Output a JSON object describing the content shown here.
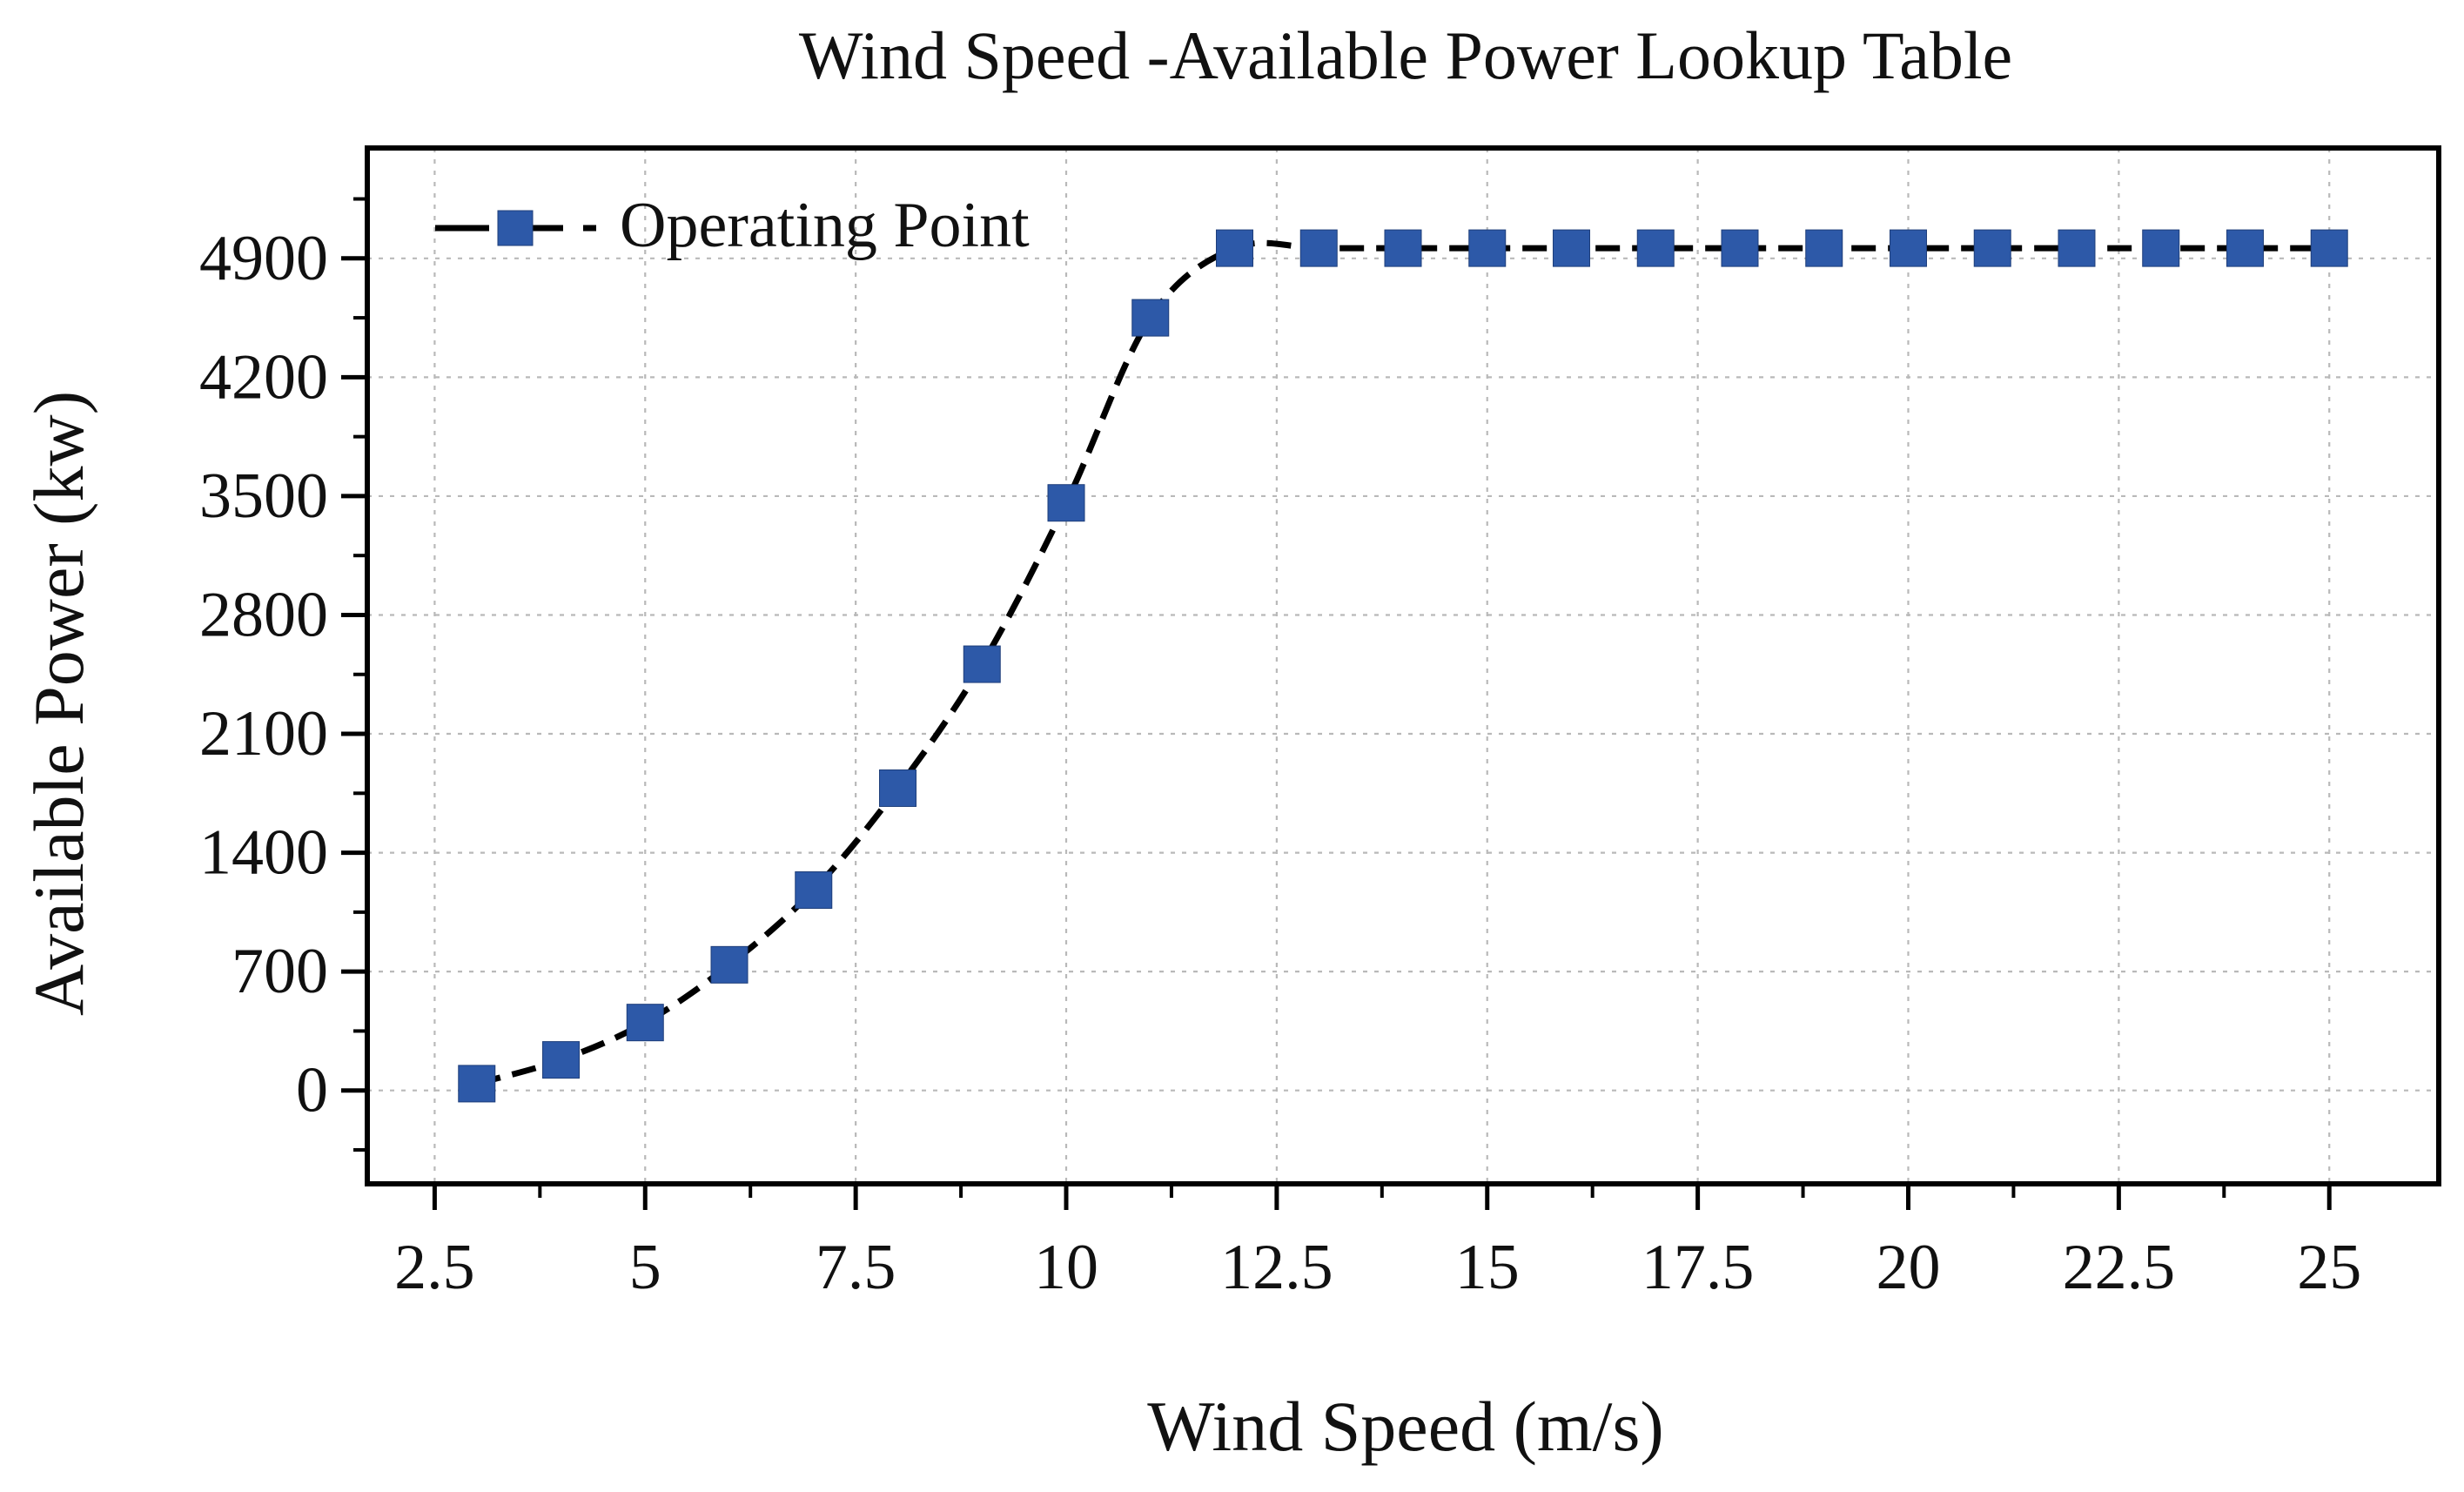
{
  "chart_data": {
    "type": "line",
    "title": "Wind Speed -Available Power Lookup Table",
    "xlabel": "Wind Speed (m/s)",
    "ylabel": "Available Power (kw)",
    "xlim": [
      1.7,
      26.3
    ],
    "ylim": [
      -550,
      5550
    ],
    "x_ticks": [
      2.5,
      5,
      7.5,
      10,
      12.5,
      15,
      17.5,
      20,
      22.5,
      25
    ],
    "x_tick_labels": [
      "2.5",
      "5",
      "7.5",
      "10",
      "12.5",
      "15",
      "17.5",
      "20",
      "22.5",
      "25"
    ],
    "y_ticks": [
      0,
      700,
      1400,
      2100,
      2800,
      3500,
      4200,
      4900
    ],
    "y_tick_labels": [
      "0",
      "700",
      "1400",
      "2100",
      "2800",
      "3500",
      "4200",
      "4900"
    ],
    "grid": true,
    "legend_position": "top-left",
    "series": [
      {
        "name": "Operating Point",
        "marker": "square",
        "line_style": "dashed",
        "line_color": "#000000",
        "marker_color": "#2d59a8",
        "x": [
          3,
          4,
          5,
          6,
          7,
          8,
          9,
          10,
          11,
          12,
          13,
          14,
          15,
          16,
          17,
          18,
          19,
          20,
          21,
          22,
          23,
          24,
          25
        ],
        "y": [
          40,
          180,
          400,
          740,
          1180,
          1780,
          2510,
          3460,
          4550,
          4960,
          4960,
          4960,
          4960,
          4960,
          4960,
          4960,
          4960,
          4960,
          4960,
          4960,
          4960,
          4960,
          4960
        ]
      }
    ]
  }
}
